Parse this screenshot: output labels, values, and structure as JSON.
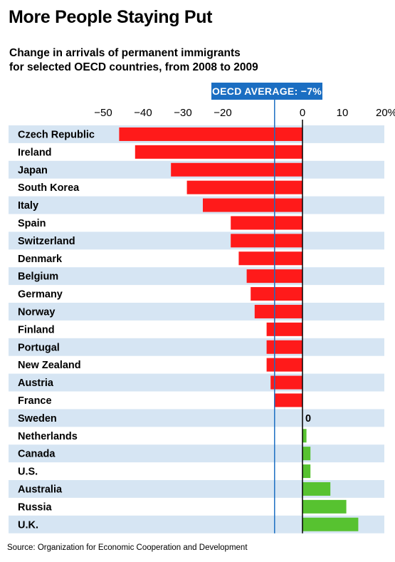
{
  "header": {
    "title": "More People Staying Put",
    "subtitle_line1": "Change in arrivals of permanent immigrants",
    "subtitle_line2": "for selected OECD countries, from 2008 to 2009"
  },
  "annotation": {
    "average_label": "OECD AVERAGE: −7%"
  },
  "source": "Source: Organization for Economic Cooperation and Development",
  "colors": {
    "negative": "#ff1a1a",
    "positive": "#57c230",
    "stripe": "#d6e5f3",
    "average_line": "#1b6ec2",
    "zero_line": "#000000"
  },
  "chart_data": {
    "type": "bar",
    "orientation": "horizontal",
    "title": "More People Staying Put",
    "subtitle": "Change in arrivals of permanent immigrants for selected OECD countries, from 2008 to 2009",
    "categories": [
      "Czech Republic",
      "Ireland",
      "Japan",
      "South Korea",
      "Italy",
      "Spain",
      "Switzerland",
      "Denmark",
      "Belgium",
      "Germany",
      "Norway",
      "Finland",
      "Portugal",
      "New Zealand",
      "Austria",
      "France",
      "Sweden",
      "Netherlands",
      "Canada",
      "U.S.",
      "Australia",
      "Russia",
      "U.K."
    ],
    "values": [
      -46,
      -42,
      -33,
      -29,
      -25,
      -18,
      -18,
      -16,
      -14,
      -13,
      -12,
      -9,
      -9,
      -9,
      -8,
      -7,
      0,
      1,
      2,
      2,
      7,
      11,
      14
    ],
    "value_labels": {
      "Sweden": "0"
    },
    "x_ticks": [
      -50,
      -40,
      -30,
      -20,
      0,
      10,
      20
    ],
    "x_tick_labels": [
      "−50",
      "−40",
      "−30",
      "−20",
      "0",
      "10",
      "20%"
    ],
    "xlim": [
      -52,
      20
    ],
    "reference_line": {
      "value": -7,
      "label": "OECD AVERAGE: −7%"
    },
    "grid": false,
    "legend": "none",
    "striped_rows": true
  }
}
